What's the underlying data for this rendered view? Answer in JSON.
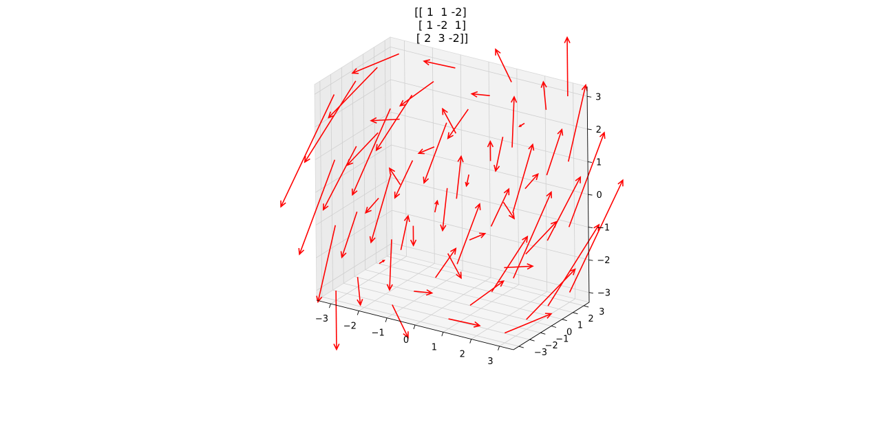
{
  "chart_data": {
    "type": "quiver3d",
    "title": [
      "[[ 1  1 -2]",
      " [ 1 -2  1]",
      " [ 2  3 -2]]"
    ],
    "matrix": [
      [
        1,
        1,
        -2
      ],
      [
        1,
        -2,
        1
      ],
      [
        2,
        3,
        -2
      ]
    ],
    "grid_values": [
      -3,
      -2,
      -1,
      0,
      1,
      2,
      3
    ],
    "xlim": [
      -3.5,
      3.5
    ],
    "ylim": [
      -3.5,
      3.5
    ],
    "zlim": [
      -3.3,
      3.3
    ],
    "x_ticks": [
      "−3",
      "−2",
      "−1",
      "0",
      "1",
      "2",
      "3"
    ],
    "y_ticks": [
      "−3",
      "−2",
      "−1",
      "0",
      "1",
      "2",
      "3"
    ],
    "z_ticks": [
      "−3",
      "−2",
      "−1",
      "0",
      "1",
      "2",
      "3"
    ],
    "arrow_color": "#ff0000",
    "pane_color": "#f2f2f2",
    "grid": true
  }
}
